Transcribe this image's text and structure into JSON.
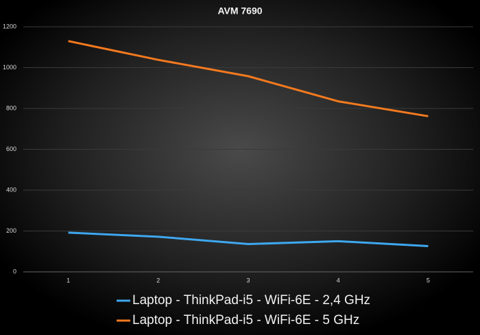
{
  "chart_data": {
    "type": "line",
    "title": "AVM 7690",
    "categories": [
      "1",
      "2",
      "3",
      "4",
      "5"
    ],
    "series": [
      {
        "name": "Laptop - ThinkPad-i5 - WiFi-6E - 2,4 GHz",
        "color": "#3ea8f0",
        "values": [
          192,
          172,
          136,
          150,
          126
        ]
      },
      {
        "name": "Laptop - ThinkPad-i5 - WiFi-6E - 5 GHz",
        "color": "#f57a1f",
        "values": [
          1130,
          1038,
          958,
          835,
          762
        ]
      }
    ],
    "ylim": [
      0,
      1200
    ],
    "yticks": [
      0,
      200,
      400,
      600,
      800,
      1000,
      1200
    ],
    "grid": true,
    "legend": "bottom"
  }
}
